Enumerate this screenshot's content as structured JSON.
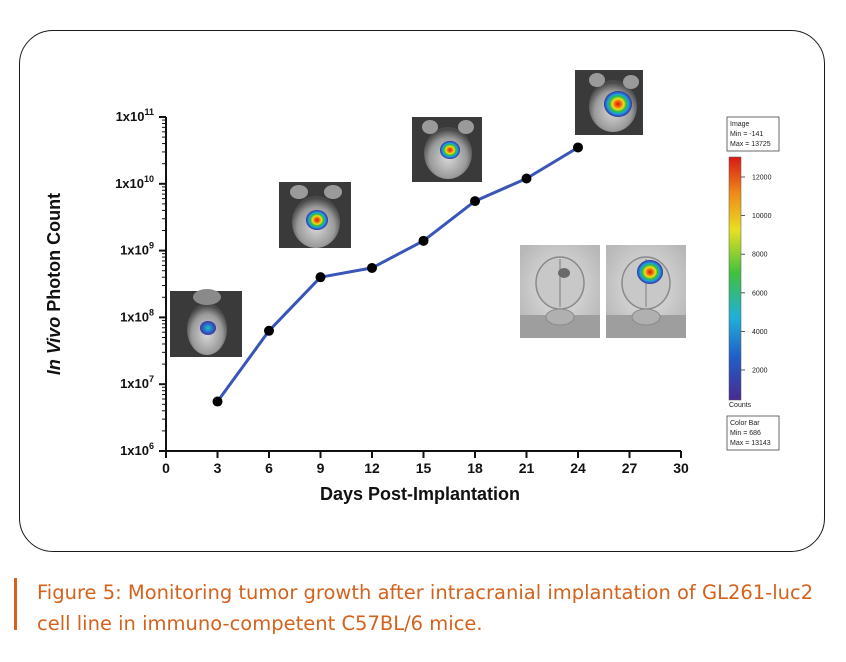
{
  "chart_data": {
    "type": "line",
    "x": [
      3,
      6,
      9,
      12,
      15,
      18,
      21,
      24
    ],
    "series": [
      {
        "values": [
          5500000.0,
          63000000.0,
          400000000.0,
          550000000.0,
          1400000000.0,
          5500000000.0,
          12000000000.0,
          35000000000.0
        ],
        "color": "#3a55b8"
      }
    ],
    "xlabel": "Days Post-Implantation",
    "ylabel_italic": "In Vivo",
    "ylabel_rest": " Photon Count",
    "xlim": [
      0,
      30
    ],
    "ylim": [
      1000000.0,
      100000000000.0
    ],
    "yscale": "log",
    "x_ticks": [
      "0",
      "3",
      "6",
      "9",
      "12",
      "15",
      "18",
      "21",
      "24",
      "27",
      "30"
    ],
    "y_ticks": [
      {
        "base": "1x10",
        "exp": "6"
      },
      {
        "base": "1x10",
        "exp": "7"
      },
      {
        "base": "1x10",
        "exp": "8"
      },
      {
        "base": "1x10",
        "exp": "9"
      },
      {
        "base": "1x10",
        "exp": "10"
      },
      {
        "base": "1x10",
        "exp": "11"
      }
    ],
    "grid": false
  },
  "colorbar": {
    "image_box": [
      "Image",
      "Min = -141",
      "Max = 13725"
    ],
    "tick_labels": [
      "12000",
      "10000",
      "8000",
      "6000",
      "4000",
      "2000"
    ],
    "unit_label": "Counts",
    "colorbar_box": [
      "Color Bar",
      "Min = 686",
      "Max = 13143"
    ]
  },
  "thumbnails": [
    {
      "name": "mouse-image-day3",
      "signal": "low"
    },
    {
      "name": "mouse-image-day9",
      "signal": "medium"
    },
    {
      "name": "mouse-image-day18",
      "signal": "medium"
    },
    {
      "name": "mouse-image-day24",
      "signal": "high"
    },
    {
      "name": "brain-image-1",
      "signal": "none"
    },
    {
      "name": "brain-image-2",
      "signal": "high"
    }
  ],
  "caption": "Figure 5: Monitoring tumor growth after intracranial implantation of GL261-luc2 cell line in immuno-competent C57BL/6 mice.",
  "colors": {
    "line": "#3a55b8",
    "caption": "#d4621c",
    "marker": "#000000"
  }
}
